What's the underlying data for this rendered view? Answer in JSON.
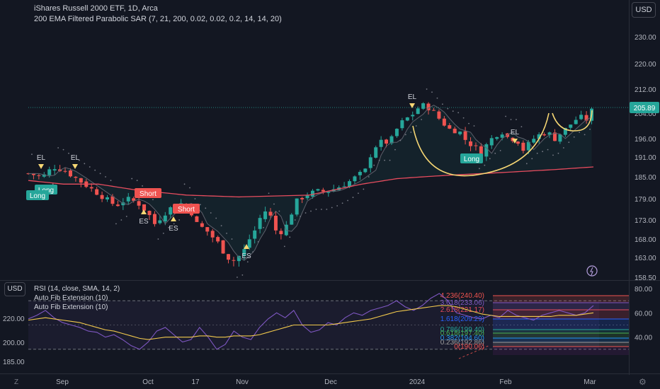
{
  "header": {
    "title": "iShares Russell 2000 ETF, 1D, Arca",
    "indicator": "200 EMA Filtered Parabolic SAR (7, 21, 200, 0.02, 0.02, 0.2, 14, 14, 20)",
    "currency_button": "USD",
    "lower_currency_button": "USD"
  },
  "lower": {
    "rsi_legend": "RSI (14, close, SMA, 14, 2)",
    "fib_legend_1": "Auto Fib Extension (10)",
    "fib_legend_2": "Auto Fib Extension (10)"
  },
  "footer": {
    "z_label": "Z",
    "gear": "⚙"
  },
  "colors": {
    "up": "#26a69a",
    "down": "#ef5350",
    "ema": "#e74c5e",
    "sar": "#787b86",
    "rsi": "#7e57c2",
    "rsi_ma": "#f2c94c",
    "arc": "#f7d774",
    "price_badge": "#26a69a",
    "background": "#131722"
  },
  "chart_data": [
    {
      "type": "candlestick",
      "title": "iShares Russell 2000 ETF, 1D, Arca",
      "x_ticks": [
        "Sep",
        "Oct",
        "17",
        "Nov",
        "Dec",
        "2024",
        "Feb",
        "Mar"
      ],
      "y_ticks": [
        158.5,
        163.0,
        168.0,
        173.0,
        179.0,
        185.0,
        191.0,
        196.0,
        204.0,
        212.0,
        220.0,
        230.0
      ],
      "y_tick_labels": [
        "158.50",
        "163.00",
        "168.00",
        "173.00",
        "179.00",
        "185.00",
        "191.00",
        "196.00",
        "204.00",
        "212.00",
        "220.00",
        "230.00"
      ],
      "last_price": 205.89,
      "last_price_label": "205.89",
      "close_path": [
        [
          0,
          186
        ],
        [
          8,
          185
        ],
        [
          14,
          188
        ],
        [
          20,
          187
        ],
        [
          26,
          185
        ],
        [
          32,
          183
        ],
        [
          38,
          181
        ],
        [
          44,
          179
        ],
        [
          50,
          177
        ],
        [
          56,
          179
        ],
        [
          62,
          178
        ],
        [
          68,
          175
        ],
        [
          72,
          172
        ],
        [
          80,
          176
        ],
        [
          86,
          178
        ],
        [
          92,
          176
        ],
        [
          96,
          172
        ],
        [
          102,
          170
        ],
        [
          108,
          167
        ],
        [
          112,
          164
        ],
        [
          116,
          162
        ],
        [
          122,
          164
        ],
        [
          126,
          168
        ],
        [
          130,
          171
        ],
        [
          134,
          176
        ],
        [
          138,
          174
        ],
        [
          142,
          169
        ],
        [
          148,
          172
        ],
        [
          152,
          178
        ],
        [
          158,
          180
        ],
        [
          164,
          181
        ],
        [
          170,
          181
        ],
        [
          176,
          182
        ],
        [
          184,
          184
        ],
        [
          192,
          187
        ],
        [
          196,
          193
        ],
        [
          200,
          195
        ],
        [
          206,
          195
        ],
        [
          210,
          199
        ],
        [
          214,
          202
        ],
        [
          218,
          203
        ],
        [
          224,
          207
        ],
        [
          230,
          205
        ],
        [
          236,
          201
        ],
        [
          240,
          199
        ],
        [
          246,
          198
        ],
        [
          250,
          195
        ],
        [
          254,
          194
        ],
        [
          258,
          192
        ],
        [
          262,
          195
        ],
        [
          266,
          197
        ],
        [
          270,
          198
        ],
        [
          274,
          196
        ],
        [
          278,
          196
        ],
        [
          282,
          193
        ],
        [
          286,
          195
        ],
        [
          290,
          197
        ],
        [
          296,
          198
        ],
        [
          300,
          196
        ],
        [
          306,
          199
        ],
        [
          310,
          201
        ],
        [
          314,
          203
        ],
        [
          318,
          202
        ],
        [
          322,
          205.89
        ]
      ],
      "ema200_path": [
        [
          0,
          184
        ],
        [
          20,
          183
        ],
        [
          40,
          183
        ],
        [
          60,
          181.5
        ],
        [
          90,
          180
        ],
        [
          120,
          179.5
        ],
        [
          160,
          180
        ],
        [
          190,
          183
        ],
        [
          210,
          184.5
        ],
        [
          240,
          185.5
        ],
        [
          270,
          186.3
        ],
        [
          300,
          187.2
        ],
        [
          322,
          188
        ]
      ],
      "signals": [
        {
          "label": "EL",
          "kind": "triangle-down"
        },
        {
          "label": "Long",
          "kind": "badge"
        },
        {
          "label": "Long",
          "kind": "badge"
        },
        {
          "label": "EL",
          "kind": "triangle-down"
        },
        {
          "label": "Short",
          "kind": "badge"
        },
        {
          "label": "ES",
          "kind": "triangle-up"
        },
        {
          "label": "ES",
          "kind": "triangle-up"
        },
        {
          "label": "Short",
          "kind": "badge"
        },
        {
          "label": "ES",
          "kind": "triangle-up"
        },
        {
          "label": "EL",
          "kind": "triangle-down"
        },
        {
          "label": "Long",
          "kind": "badge"
        },
        {
          "label": "EL",
          "kind": "triangle-down"
        }
      ]
    },
    {
      "type": "line",
      "title": "RSI (14, close, SMA, 14, 2)",
      "series": [
        {
          "name": "RSI",
          "values": [
            55,
            58,
            62,
            56,
            52,
            50,
            48,
            45,
            44,
            40,
            42,
            38,
            33,
            30,
            36,
            45,
            48,
            42,
            36,
            38,
            48,
            40,
            30,
            34,
            45,
            40,
            38,
            48,
            55,
            60,
            56,
            62,
            50,
            44,
            46,
            52,
            50,
            56,
            60,
            58,
            62,
            64,
            66,
            70,
            65,
            62,
            66,
            72,
            76,
            70,
            60,
            58,
            56,
            55,
            58,
            56,
            62,
            58,
            56,
            54,
            58,
            60,
            62,
            60,
            58,
            60,
            66
          ]
        },
        {
          "name": "RSI MA",
          "values": [
            54,
            55,
            56,
            55,
            54,
            53,
            52,
            50,
            48,
            46,
            45,
            43,
            41,
            39,
            38,
            39,
            40,
            40,
            40,
            40,
            41,
            41,
            40,
            40,
            41,
            41,
            41,
            42,
            44,
            46,
            48,
            50,
            50,
            50,
            50,
            50,
            51,
            52,
            53,
            54,
            55,
            57,
            59,
            61,
            62,
            63,
            64,
            65,
            66,
            66,
            65,
            63,
            61,
            59,
            58,
            57,
            57,
            57,
            57,
            57,
            57,
            57,
            58,
            58,
            58,
            59,
            60
          ]
        }
      ],
      "fib_levels": [
        {
          "label": "4.236(240.40)"
        },
        {
          "label": "3.618(233.06)"
        },
        {
          "label": "2.618(221.17)"
        },
        {
          "label": "1.618(209.29)"
        },
        {
          "label": "0.786(199.40)"
        },
        {
          "label": "0.618(197.40)"
        },
        {
          "label": "0.382(194.60)"
        },
        {
          "label": "0.236(192.86)"
        },
        {
          "label": "0(190.06)"
        }
      ],
      "right_ticks": [
        "80.00",
        "60.00",
        "40.00"
      ],
      "left_ticks": [
        "220.00",
        "200.00",
        "185.00"
      ]
    }
  ]
}
